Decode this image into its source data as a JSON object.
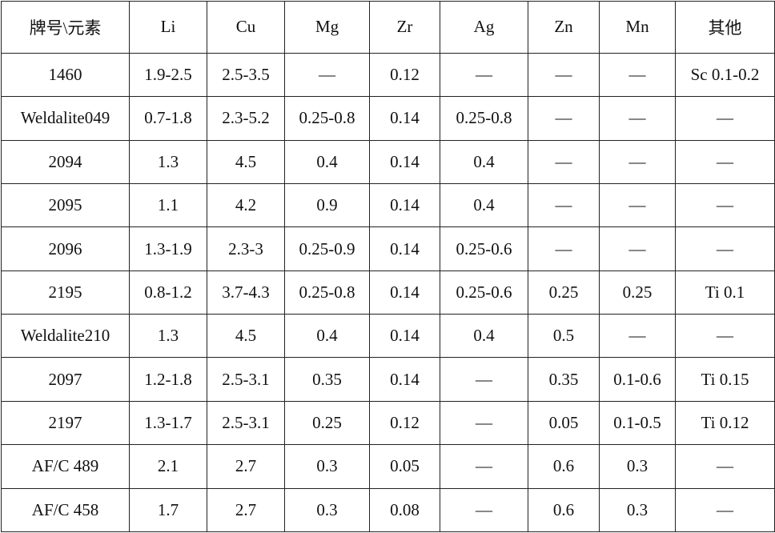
{
  "table": {
    "header": [
      "牌号\\元素",
      "Li",
      "Cu",
      "Mg",
      "Zr",
      "Ag",
      "Zn",
      "Mn",
      "其他"
    ],
    "rows": [
      [
        "1460",
        "1.9-2.5",
        "2.5-3.5",
        "—",
        "0.12",
        "—",
        "—",
        "—",
        "Sc 0.1-0.2"
      ],
      [
        "Weldalite049",
        "0.7-1.8",
        "2.3-5.2",
        "0.25-0.8",
        "0.14",
        "0.25-0.8",
        "—",
        "—",
        "—"
      ],
      [
        "2094",
        "1.3",
        "4.5",
        "0.4",
        "0.14",
        "0.4",
        "—",
        "—",
        "—"
      ],
      [
        "2095",
        "1.1",
        "4.2",
        "0.9",
        "0.14",
        "0.4",
        "—",
        "—",
        "—"
      ],
      [
        "2096",
        "1.3-1.9",
        "2.3-3",
        "0.25-0.9",
        "0.14",
        "0.25-0.6",
        "—",
        "—",
        "—"
      ],
      [
        "2195",
        "0.8-1.2",
        "3.7-4.3",
        "0.25-0.8",
        "0.14",
        "0.25-0.6",
        "0.25",
        "0.25",
        "Ti 0.1"
      ],
      [
        "Weldalite210",
        "1.3",
        "4.5",
        "0.4",
        "0.14",
        "0.4",
        "0.5",
        "—",
        "—"
      ],
      [
        "2097",
        "1.2-1.8",
        "2.5-3.1",
        "0.35",
        "0.14",
        "—",
        "0.35",
        "0.1-0.6",
        "Ti 0.15"
      ],
      [
        "2197",
        "1.3-1.7",
        "2.5-3.1",
        "0.25",
        "0.12",
        "—",
        "0.05",
        "0.1-0.5",
        "Ti 0.12"
      ],
      [
        "AF/C 489",
        "2.1",
        "2.7",
        "0.3",
        "0.05",
        "—",
        "0.6",
        "0.3",
        "—"
      ],
      [
        "AF/C 458",
        "1.7",
        "2.7",
        "0.3",
        "0.08",
        "—",
        "0.6",
        "0.3",
        "—"
      ]
    ]
  }
}
